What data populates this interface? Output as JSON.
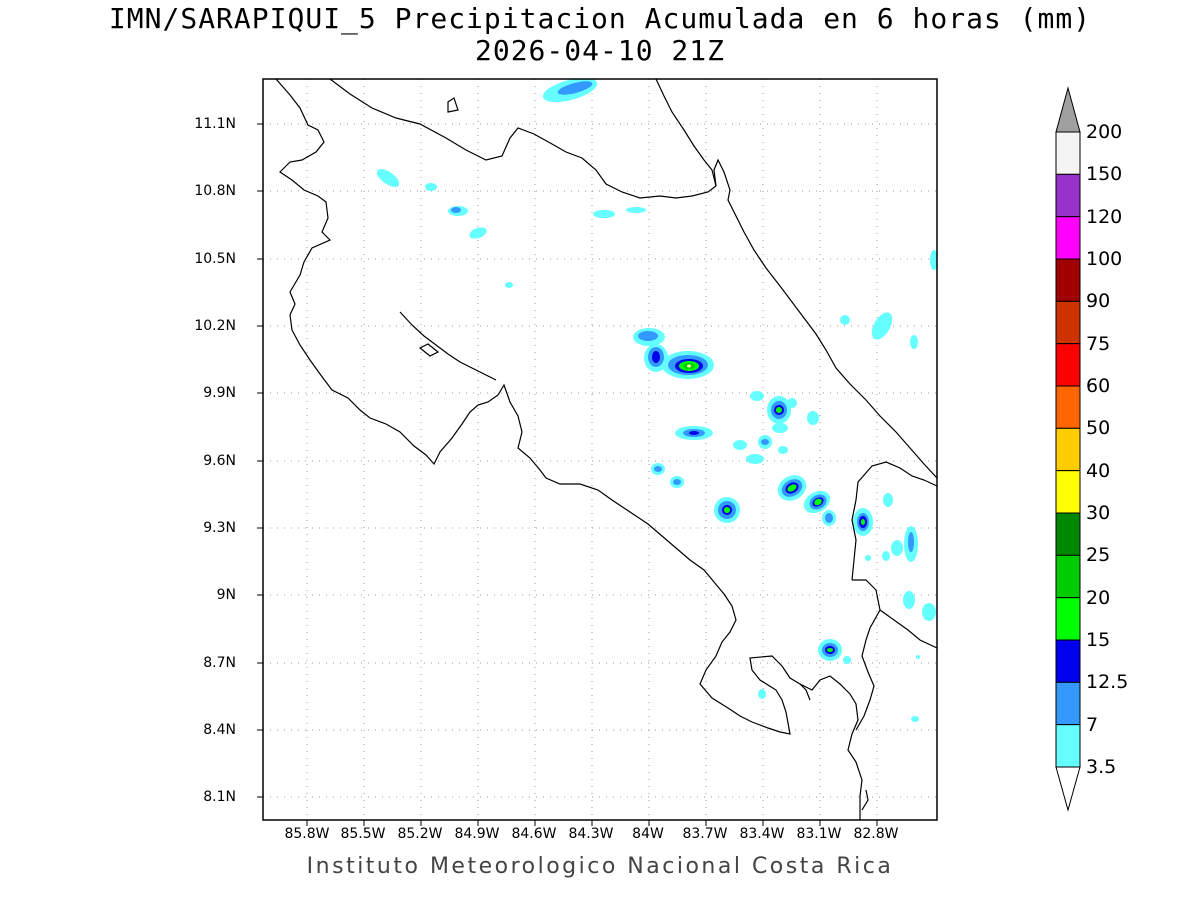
{
  "title": "IMN/SARAPIQUI_5 Precipitacion Acumulada en 6 horas (mm)",
  "subtitle": "2026-04-10 21Z",
  "footer": "Instituto Meteorologico Nacional Costa Rica",
  "lat_labels": [
    "11.1N",
    "10.8N",
    "10.5N",
    "10.2N",
    "9.9N",
    "9.6N",
    "9.3N",
    "9N",
    "8.7N",
    "8.4N",
    "8.1N"
  ],
  "lon_labels": [
    "85.8W",
    "85.5W",
    "85.2W",
    "84.9W",
    "84.6W",
    "84.3W",
    "84W",
    "83.7W",
    "83.4W",
    "83.1W",
    "82.8W"
  ],
  "colorbar": {
    "labels": [
      "200",
      "150",
      "120",
      "100",
      "90",
      "75",
      "60",
      "50",
      "40",
      "30",
      "25",
      "20",
      "15",
      "12.5",
      "7",
      "3.5"
    ],
    "colors": [
      "#f4f4f4",
      "#9932cc",
      "#ff00ff",
      "#a00000",
      "#cc3300",
      "#ff0000",
      "#ff6600",
      "#ffcc00",
      "#ffff00",
      "#008800",
      "#00cc00",
      "#00ff00",
      "#0000ee",
      "#3399ff",
      "#66ffff"
    ],
    "over_color": "#a0a0a0",
    "under_color": "#ffffff"
  }
}
